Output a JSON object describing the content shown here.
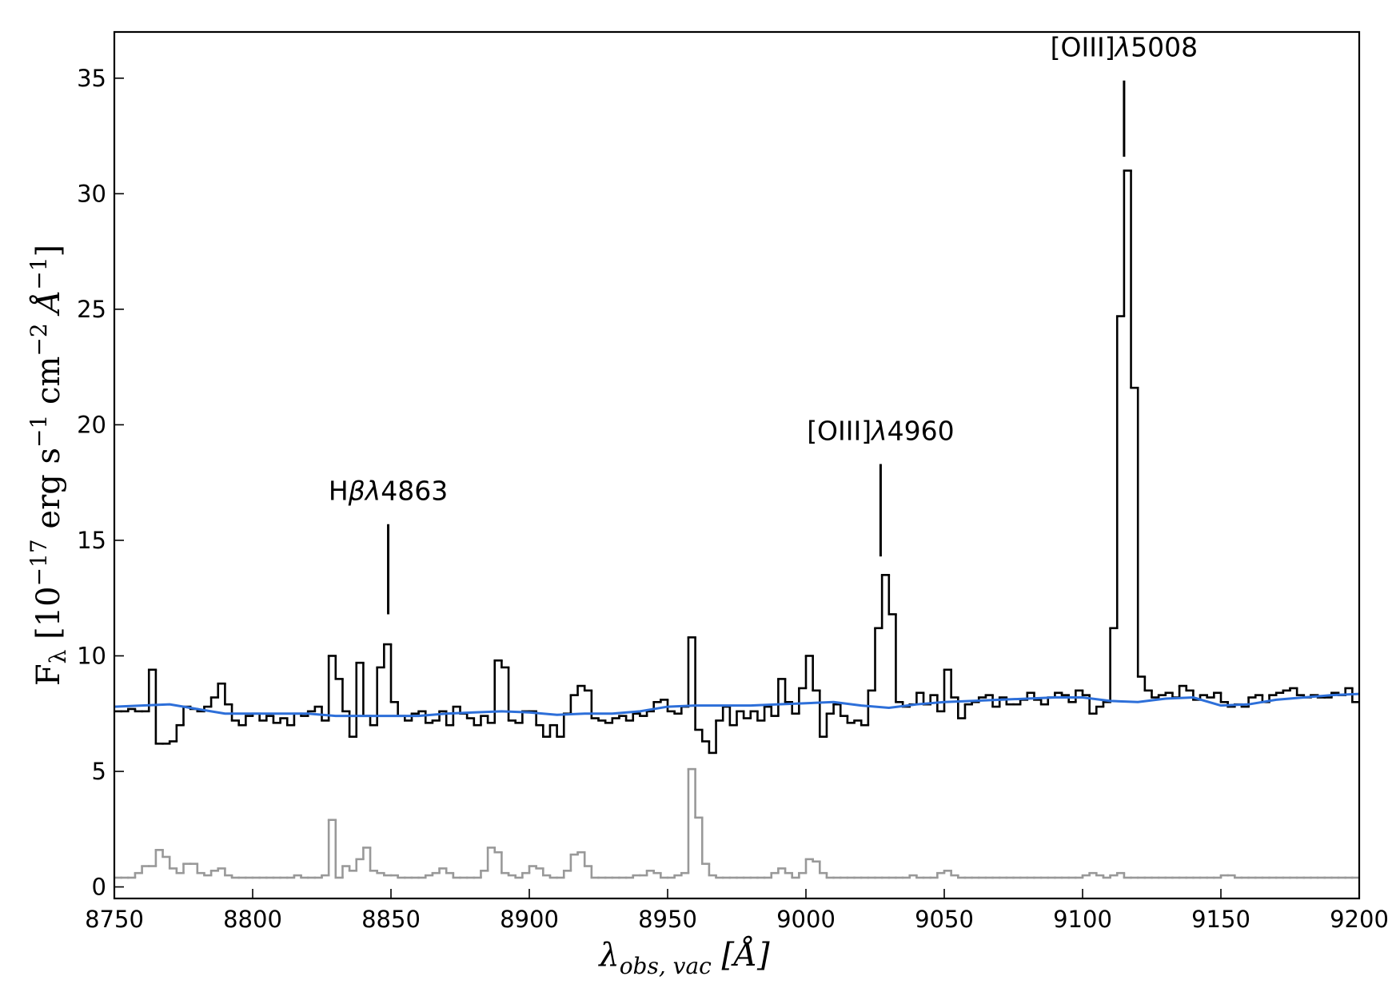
{
  "chart_data": {
    "type": "step",
    "xlim": [
      8750,
      9200
    ],
    "ylim": [
      -0.5,
      37
    ],
    "xticks": [
      8750,
      8800,
      8850,
      8900,
      8950,
      9000,
      9050,
      9100,
      9150,
      9200
    ],
    "yticks": [
      0,
      5,
      10,
      15,
      20,
      25,
      30,
      35
    ],
    "xlabel": [
      "λ",
      "obs, vac",
      " [Å]"
    ],
    "ylabel": [
      "F",
      "λ",
      " [10",
      "−17",
      " erg s",
      "−1",
      " cm",
      "−2",
      " Å",
      "−1",
      "]"
    ],
    "series": [
      {
        "color": "#000000",
        "drawstyle": "steps-mid",
        "x": [
          8751.25,
          8753.75,
          8756.25,
          8758.75,
          8761.25,
          8763.75,
          8766.25,
          8768.75,
          8771.25,
          8773.75,
          8776.25,
          8778.75,
          8781.25,
          8783.75,
          8786.25,
          8788.75,
          8791.25,
          8793.75,
          8796.25,
          8798.75,
          8801.25,
          8803.75,
          8806.25,
          8808.75,
          8811.25,
          8813.75,
          8816.25,
          8818.75,
          8821.25,
          8823.75,
          8826.25,
          8828.75,
          8831.25,
          8833.75,
          8836.25,
          8838.75,
          8841.25,
          8843.75,
          8846.25,
          8848.75,
          8851.25,
          8853.75,
          8856.25,
          8858.75,
          8861.25,
          8863.75,
          8866.25,
          8868.75,
          8871.25,
          8873.75,
          8876.25,
          8878.75,
          8881.25,
          8883.75,
          8886.25,
          8888.75,
          8891.25,
          8893.75,
          8896.25,
          8898.75,
          8901.25,
          8903.75,
          8906.25,
          8908.75,
          8911.25,
          8913.75,
          8916.25,
          8918.75,
          8921.25,
          8923.75,
          8926.25,
          8928.75,
          8931.25,
          8933.75,
          8936.25,
          8938.75,
          8941.25,
          8943.75,
          8946.25,
          8948.75,
          8951.25,
          8953.75,
          8956.25,
          8958.75,
          8961.25,
          8963.75,
          8966.25,
          8968.75,
          8971.25,
          8973.75,
          8976.25,
          8978.75,
          8981.25,
          8983.75,
          8986.25,
          8988.75,
          8991.25,
          8993.75,
          8996.25,
          8998.75,
          9001.25,
          9003.75,
          9006.25,
          9008.75,
          9011.25,
          9013.75,
          9016.25,
          9018.75,
          9021.25,
          9023.75,
          9026.25,
          9028.75,
          9031.25,
          9033.75,
          9036.25,
          9038.75,
          9041.25,
          9043.75,
          9046.25,
          9048.75,
          9051.25,
          9053.75,
          9056.25,
          9058.75,
          9061.25,
          9063.75,
          9066.25,
          9068.75,
          9071.25,
          9073.75,
          9076.25,
          9078.75,
          9081.25,
          9083.75,
          9086.25,
          9088.75,
          9091.25,
          9093.75,
          9096.25,
          9098.75,
          9101.25,
          9103.75,
          9106.25,
          9108.75,
          9111.25,
          9113.75,
          9116.25,
          9118.75,
          9121.25,
          9123.75,
          9126.25,
          9128.75,
          9131.25,
          9133.75,
          9136.25,
          9138.75,
          9141.25,
          9143.75,
          9146.25,
          9148.75,
          9151.25,
          9153.75,
          9156.25,
          9158.75,
          9161.25,
          9163.75,
          9166.25,
          9168.75,
          9171.25,
          9173.75,
          9176.25,
          9178.75,
          9181.25,
          9183.75,
          9186.25,
          9188.75,
          9191.25,
          9193.75,
          9196.25,
          9198.75
        ],
        "values": [
          7.6,
          7.6,
          7.7,
          7.6,
          7.6,
          9.4,
          6.2,
          6.2,
          6.3,
          7.0,
          7.8,
          7.7,
          7.6,
          7.8,
          8.2,
          8.8,
          7.9,
          7.2,
          7.0,
          7.4,
          7.5,
          7.2,
          7.4,
          7.1,
          7.3,
          7.0,
          7.5,
          7.4,
          7.6,
          7.8,
          7.2,
          10.0,
          9.0,
          7.6,
          6.5,
          9.7,
          7.4,
          7.0,
          9.5,
          10.5,
          8.0,
          7.4,
          7.2,
          7.5,
          7.6,
          7.1,
          7.2,
          7.6,
          7.0,
          7.8,
          7.5,
          7.3,
          7.0,
          7.4,
          7.1,
          9.8,
          9.5,
          7.2,
          7.1,
          7.6,
          7.6,
          7.0,
          6.5,
          7.0,
          6.5,
          7.5,
          8.3,
          8.7,
          8.5,
          7.3,
          7.2,
          7.1,
          7.3,
          7.4,
          7.2,
          7.5,
          7.4,
          7.6,
          8.0,
          8.1,
          7.6,
          7.5,
          7.8,
          10.8,
          6.8,
          6.3,
          5.8,
          7.2,
          7.8,
          7.0,
          7.6,
          7.3,
          7.6,
          7.2,
          7.8,
          7.4,
          9.0,
          8.0,
          7.5,
          8.6,
          10.0,
          8.5,
          6.5,
          7.5,
          7.9,
          7.4,
          7.1,
          7.2,
          7.0,
          8.5,
          11.2,
          13.5,
          11.8,
          8.0,
          7.8,
          7.9,
          8.4,
          7.9,
          8.3,
          7.6,
          9.4,
          8.2,
          7.3,
          7.9,
          8.0,
          8.2,
          8.3,
          7.8,
          8.2,
          7.9,
          7.9,
          8.1,
          8.4,
          8.1,
          7.9,
          8.2,
          8.4,
          8.3,
          8.0,
          8.5,
          8.3,
          7.5,
          7.8,
          8.0,
          11.2,
          24.7,
          31.0,
          21.6,
          9.1,
          8.5,
          8.2,
          8.3,
          8.4,
          8.2,
          8.7,
          8.5,
          8.1,
          8.3,
          8.2,
          8.4,
          8.0,
          7.8,
          7.9,
          7.8,
          8.2,
          8.3,
          8.0,
          8.3,
          8.4,
          8.5,
          8.6,
          8.3,
          8.2,
          8.3,
          8.2,
          8.2,
          8.4,
          8.3,
          8.6,
          8.0
        ]
      },
      {
        "color": "#999999",
        "drawstyle": "steps-mid",
        "x": [
          8751.25,
          8753.75,
          8756.25,
          8758.75,
          8761.25,
          8763.75,
          8766.25,
          8768.75,
          8771.25,
          8773.75,
          8776.25,
          8778.75,
          8781.25,
          8783.75,
          8786.25,
          8788.75,
          8791.25,
          8793.75,
          8796.25,
          8798.75,
          8801.25,
          8803.75,
          8806.25,
          8808.75,
          8811.25,
          8813.75,
          8816.25,
          8818.75,
          8821.25,
          8823.75,
          8826.25,
          8828.75,
          8831.25,
          8833.75,
          8836.25,
          8838.75,
          8841.25,
          8843.75,
          8846.25,
          8848.75,
          8851.25,
          8853.75,
          8856.25,
          8858.75,
          8861.25,
          8863.75,
          8866.25,
          8868.75,
          8871.25,
          8873.75,
          8876.25,
          8878.75,
          8881.25,
          8883.75,
          8886.25,
          8888.75,
          8891.25,
          8893.75,
          8896.25,
          8898.75,
          8901.25,
          8903.75,
          8906.25,
          8908.75,
          8911.25,
          8913.75,
          8916.25,
          8918.75,
          8921.25,
          8923.75,
          8926.25,
          8928.75,
          8931.25,
          8933.75,
          8936.25,
          8938.75,
          8941.25,
          8943.75,
          8946.25,
          8948.75,
          8951.25,
          8953.75,
          8956.25,
          8958.75,
          8961.25,
          8963.75,
          8966.25,
          8968.75,
          8971.25,
          8973.75,
          8976.25,
          8978.75,
          8981.25,
          8983.75,
          8986.25,
          8988.75,
          8991.25,
          8993.75,
          8996.25,
          8998.75,
          9001.25,
          9003.75,
          9006.25,
          9008.75,
          9011.25,
          9013.75,
          9016.25,
          9018.75,
          9021.25,
          9023.75,
          9026.25,
          9028.75,
          9031.25,
          9033.75,
          9036.25,
          9038.75,
          9041.25,
          9043.75,
          9046.25,
          9048.75,
          9051.25,
          9053.75,
          9056.25,
          9058.75,
          9061.25,
          9063.75,
          9066.25,
          9068.75,
          9071.25,
          9073.75,
          9076.25,
          9078.75,
          9081.25,
          9083.75,
          9086.25,
          9088.75,
          9091.25,
          9093.75,
          9096.25,
          9098.75,
          9101.25,
          9103.75,
          9106.25,
          9108.75,
          9111.25,
          9113.75,
          9116.25,
          9118.75,
          9121.25,
          9123.75,
          9126.25,
          9128.75,
          9131.25,
          9133.75,
          9136.25,
          9138.75,
          9141.25,
          9143.75,
          9146.25,
          9148.75,
          9151.25,
          9153.75,
          9156.25,
          9158.75,
          9161.25,
          9163.75,
          9166.25,
          9168.75,
          9171.25,
          9173.75,
          9176.25,
          9178.75,
          9181.25,
          9183.75,
          9186.25,
          9188.75,
          9191.25,
          9193.75,
          9196.25,
          9198.75
        ],
        "values": [
          0.4,
          0.4,
          0.4,
          0.6,
          0.9,
          0.9,
          1.6,
          1.3,
          0.8,
          0.6,
          1.0,
          1.0,
          0.6,
          0.5,
          0.7,
          0.8,
          0.5,
          0.4,
          0.4,
          0.4,
          0.4,
          0.4,
          0.4,
          0.4,
          0.4,
          0.4,
          0.5,
          0.4,
          0.4,
          0.4,
          0.5,
          2.9,
          0.4,
          0.9,
          0.7,
          1.2,
          1.7,
          0.7,
          0.6,
          0.5,
          0.5,
          0.4,
          0.4,
          0.4,
          0.4,
          0.5,
          0.6,
          0.8,
          0.6,
          0.4,
          0.4,
          0.4,
          0.4,
          0.7,
          1.7,
          1.5,
          0.6,
          0.5,
          0.4,
          0.6,
          0.9,
          0.8,
          0.5,
          0.4,
          0.4,
          0.7,
          1.4,
          1.5,
          0.9,
          0.4,
          0.4,
          0.4,
          0.4,
          0.4,
          0.4,
          0.5,
          0.5,
          0.7,
          0.6,
          0.4,
          0.4,
          0.5,
          0.6,
          5.1,
          3.0,
          1.0,
          0.5,
          0.4,
          0.4,
          0.4,
          0.4,
          0.4,
          0.4,
          0.4,
          0.4,
          0.6,
          0.8,
          0.6,
          0.4,
          0.6,
          1.2,
          1.1,
          0.6,
          0.4,
          0.4,
          0.4,
          0.4,
          0.4,
          0.4,
          0.4,
          0.4,
          0.4,
          0.4,
          0.4,
          0.4,
          0.5,
          0.4,
          0.4,
          0.4,
          0.6,
          0.7,
          0.5,
          0.4,
          0.4,
          0.4,
          0.4,
          0.4,
          0.4,
          0.4,
          0.4,
          0.4,
          0.4,
          0.4,
          0.4,
          0.4,
          0.4,
          0.4,
          0.4,
          0.4,
          0.4,
          0.5,
          0.6,
          0.5,
          0.4,
          0.5,
          0.6,
          0.4,
          0.4,
          0.4,
          0.4,
          0.4,
          0.4,
          0.4,
          0.4,
          0.4,
          0.4,
          0.4,
          0.4,
          0.4,
          0.4,
          0.5,
          0.5,
          0.4,
          0.4,
          0.4,
          0.4,
          0.4,
          0.4,
          0.4,
          0.4,
          0.4,
          0.4,
          0.4,
          0.4,
          0.4,
          0.4,
          0.4,
          0.4,
          0.4,
          0.4
        ]
      },
      {
        "color": "#2d6fd9",
        "drawstyle": "line",
        "x": [
          8750,
          8760,
          8770,
          8780,
          8790,
          8800,
          8810,
          8820,
          8830,
          8840,
          8850,
          8860,
          8870,
          8880,
          8890,
          8900,
          8910,
          8920,
          8930,
          8940,
          8950,
          8960,
          8970,
          8980,
          8990,
          9000,
          9010,
          9020,
          9030,
          9040,
          9050,
          9060,
          9070,
          9080,
          9090,
          9100,
          9110,
          9120,
          9130,
          9140,
          9150,
          9160,
          9170,
          9180,
          9190,
          9200
        ],
        "values": [
          7.8,
          7.85,
          7.9,
          7.7,
          7.5,
          7.5,
          7.5,
          7.5,
          7.4,
          7.4,
          7.4,
          7.4,
          7.5,
          7.55,
          7.6,
          7.55,
          7.45,
          7.5,
          7.5,
          7.6,
          7.8,
          7.85,
          7.85,
          7.85,
          7.9,
          7.95,
          8.0,
          7.85,
          7.75,
          7.9,
          8.0,
          8.05,
          8.1,
          8.15,
          8.2,
          8.2,
          8.05,
          8.0,
          8.15,
          8.2,
          7.85,
          7.9,
          8.1,
          8.2,
          8.3,
          8.35
        ]
      }
    ],
    "annotations": [
      {
        "text": [
          "H",
          "β",
          "λ",
          "4863"
        ],
        "x": 8849,
        "y_range": [
          11.8,
          15.7
        ]
      },
      {
        "text": [
          "[OIII]",
          "λ",
          "4960"
        ],
        "x": 9027,
        "y_range": [
          14.3,
          18.3
        ]
      },
      {
        "text": [
          "[OIII]",
          "λ",
          "5008"
        ],
        "x": 9115,
        "y_range": [
          31.6,
          34.9
        ]
      }
    ]
  }
}
